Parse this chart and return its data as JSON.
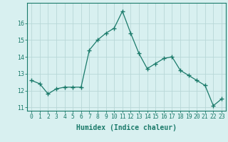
{
  "x": [
    0,
    1,
    2,
    3,
    4,
    5,
    6,
    7,
    8,
    9,
    10,
    11,
    12,
    13,
    14,
    15,
    16,
    17,
    18,
    19,
    20,
    21,
    22,
    23
  ],
  "y": [
    12.6,
    12.4,
    11.8,
    12.1,
    12.2,
    12.2,
    12.2,
    14.4,
    15.0,
    15.4,
    15.7,
    16.7,
    15.4,
    14.2,
    13.3,
    13.6,
    13.9,
    14.0,
    13.2,
    12.9,
    12.6,
    12.3,
    11.1,
    11.5
  ],
  "line_color": "#1a7a6a",
  "marker": "+",
  "marker_size": 4.0,
  "bg_color": "#d8f0f0",
  "grid_color": "#b8d8d8",
  "xlabel": "Humidex (Indice chaleur)",
  "xlim": [
    -0.5,
    23.5
  ],
  "ylim": [
    10.8,
    17.2
  ],
  "yticks": [
    11,
    12,
    13,
    14,
    15,
    16
  ],
  "xticks": [
    0,
    1,
    2,
    3,
    4,
    5,
    6,
    7,
    8,
    9,
    10,
    11,
    12,
    13,
    14,
    15,
    16,
    17,
    18,
    19,
    20,
    21,
    22,
    23
  ],
  "tick_color": "#1a7a6a",
  "label_color": "#1a7a6a",
  "spine_color": "#1a7a6a",
  "font_size_label": 7.0,
  "font_size_tick": 5.8
}
